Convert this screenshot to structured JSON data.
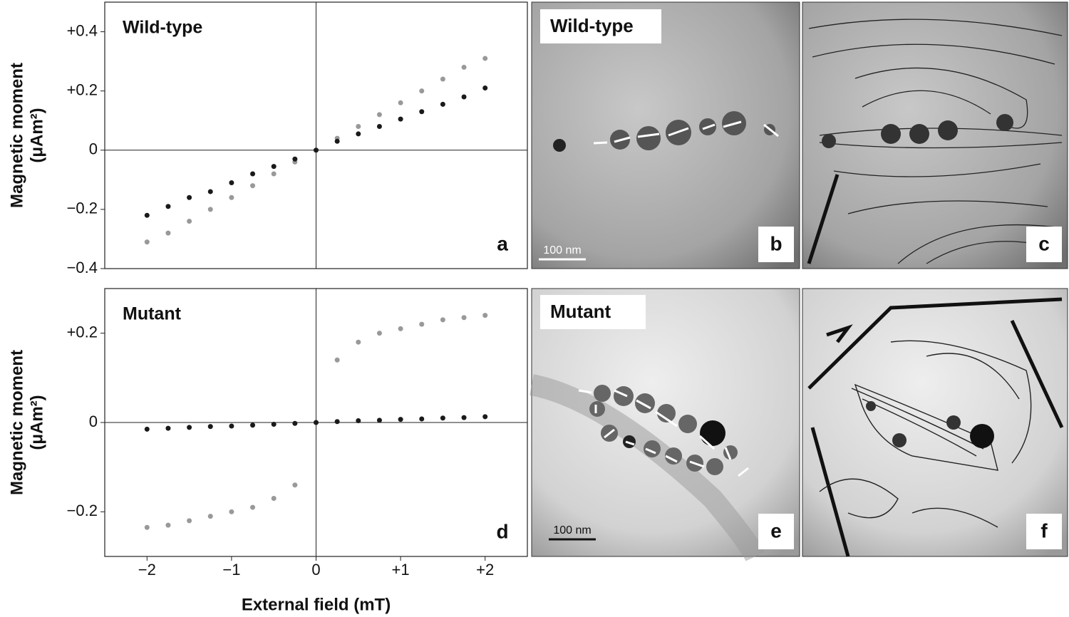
{
  "chart_data": [
    {
      "type": "scatter",
      "annotation": "Wild-type",
      "panel_label": "a",
      "ylabel": [
        "Magnetic moment",
        "(μAm²)"
      ],
      "x": [
        -2,
        -1.75,
        -1.5,
        -1.25,
        -1,
        -0.75,
        -0.5,
        -0.25,
        0,
        0.25,
        0.5,
        0.75,
        1,
        1.25,
        1.5,
        1.75,
        2
      ],
      "series": [
        {
          "color": "#999999",
          "values": [
            -0.31,
            -0.28,
            -0.24,
            -0.2,
            -0.16,
            -0.12,
            -0.08,
            -0.04,
            0,
            0.04,
            0.08,
            0.12,
            0.16,
            0.2,
            0.24,
            0.28,
            0.31
          ]
        },
        {
          "color": "#1a1a1a",
          "values": [
            -0.22,
            -0.19,
            -0.16,
            -0.14,
            -0.11,
            -0.08,
            -0.055,
            -0.03,
            0,
            0.03,
            0.055,
            0.08,
            0.105,
            0.13,
            0.155,
            0.18,
            0.21
          ]
        }
      ],
      "xlim": [
        -2.5,
        2.5
      ],
      "ylim": [
        -0.4,
        0.5
      ],
      "yticks": [
        {
          "value": 0.4,
          "label": "+0.4"
        },
        {
          "value": 0.2,
          "label": "+0.2"
        },
        0,
        {
          "value": -0.2,
          "label": "−0.2"
        },
        {
          "value": -0.4,
          "label": "−0.4"
        }
      ]
    },
    {
      "type": "scatter",
      "annotation": "Mutant",
      "panel_label": "d",
      "ylabel": [
        "Magnetic moment",
        "(μAm²)"
      ],
      "xlabel": "External field (mT)",
      "x": [
        -2,
        -1.75,
        -1.5,
        -1.25,
        -1,
        -0.75,
        -0.5,
        -0.25,
        0,
        0.25,
        0.5,
        0.75,
        1,
        1.25,
        1.5,
        1.75,
        2
      ],
      "series": [
        {
          "color": "#999999",
          "values": [
            -0.235,
            -0.23,
            -0.22,
            -0.21,
            -0.2,
            -0.19,
            -0.17,
            -0.14,
            0,
            0.14,
            0.18,
            0.2,
            0.21,
            0.22,
            0.23,
            0.235,
            0.24
          ]
        },
        {
          "color": "#1a1a1a",
          "values": [
            -0.015,
            -0.013,
            -0.011,
            -0.009,
            -0.008,
            -0.006,
            -0.004,
            -0.002,
            0,
            0.002,
            0.004,
            0.005,
            0.007,
            0.008,
            0.01,
            0.011,
            0.013
          ]
        }
      ],
      "xlim": [
        -2.5,
        2.5
      ],
      "ylim": [
        -0.3,
        0.3
      ],
      "xticks": [
        {
          "value": -2,
          "label": "−2"
        },
        {
          "value": -1,
          "label": "−1"
        },
        0,
        {
          "value": 1,
          "label": "+1"
        },
        {
          "value": 2,
          "label": "+2"
        }
      ],
      "yticks": [
        {
          "value": 0.2,
          "label": "+0.2"
        },
        0,
        {
          "value": -0.2,
          "label": "−0.2"
        }
      ]
    }
  ],
  "images": [
    {
      "label": "Wild-type",
      "panel": "b",
      "scale_bar": "100 nm"
    },
    {
      "panel": "c"
    },
    {
      "label": "Mutant",
      "panel": "e",
      "scale_bar": "100 nm"
    },
    {
      "panel": "f"
    }
  ]
}
